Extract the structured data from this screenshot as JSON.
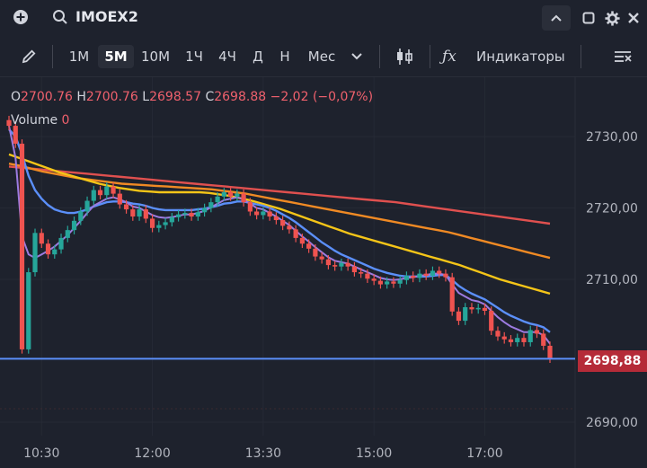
{
  "symbol": "IMOEX2",
  "timeframes": [
    "1М",
    "5М",
    "10М",
    "1Ч",
    "4Ч",
    "Д",
    "Н",
    "Мес"
  ],
  "active_timeframe": "5М",
  "indicators_label": "Индикаторы",
  "ohlc": {
    "o_label": "O",
    "o_value": "2700.76",
    "h_label": "H",
    "h_value": "2700.76",
    "l_label": "L",
    "l_value": "2698.57",
    "c_label": "C",
    "c_value": "2698.88",
    "change": "−2,02 (−0,07%)"
  },
  "volume": {
    "label": "Volume",
    "value": "0"
  },
  "last_price_label": "2698,88",
  "colors": {
    "background": "#1e222d",
    "up": "#26a69a",
    "down": "#ef5350",
    "ma_fast": "#9c7be0",
    "ma_blue": "#5b8ff9",
    "ma_yellow": "#f5c518",
    "ma_orange": "#f08a24",
    "ma_red": "#e0504f",
    "price_line": "#5b8ff9"
  },
  "chart_data": {
    "type": "candlestick",
    "x_ticks": [
      "10:30",
      "12:00",
      "13:30",
      "15:00",
      "17:00"
    ],
    "y_ticks": [
      "2730,00",
      "2720,00",
      "2710,00",
      "2690,00"
    ],
    "ylim": [
      2687,
      2735
    ],
    "last_price": 2698.88,
    "closes": [
      2731.5,
      2729.0,
      2700.2,
      2711.0,
      2716.5,
      2715.0,
      2713.5,
      2714.2,
      2715.8,
      2716.9,
      2718.2,
      2719.5,
      2721.0,
      2722.5,
      2721.8,
      2723.0,
      2722.0,
      2720.5,
      2719.8,
      2718.8,
      2719.8,
      2718.5,
      2717.2,
      2717.6,
      2718.0,
      2718.7,
      2719.1,
      2719.3,
      2718.8,
      2719.4,
      2720.0,
      2720.8,
      2721.6,
      2722.2,
      2721.6,
      2722.0,
      2720.8,
      2719.5,
      2719.0,
      2719.5,
      2718.8,
      2718.3,
      2717.5,
      2717.0,
      2715.8,
      2715.0,
      2714.3,
      2713.2,
      2712.8,
      2712.0,
      2711.8,
      2712.3,
      2711.8,
      2711.0,
      2710.8,
      2710.1,
      2709.8,
      2709.3,
      2709.7,
      2709.4,
      2709.9,
      2710.5,
      2710.2,
      2710.8,
      2710.5,
      2711.2,
      2710.8,
      2710.3,
      2705.5,
      2704.2,
      2706.1,
      2705.8,
      2706.0,
      2705.6,
      2702.8,
      2702.0,
      2701.6,
      2701.2,
      2701.8,
      2701.2,
      2702.9,
      2702.4,
      2700.7,
      2698.9
    ],
    "ma_fast": [
      2731.5,
      2727.0,
      2716.0,
      2713.5,
      2713.0,
      2713.5,
      2714.0,
      2714.6,
      2715.4,
      2716.2,
      2717.2,
      2718.2,
      2719.3,
      2720.3,
      2720.8,
      2721.3,
      2721.5,
      2721.2,
      2720.8,
      2720.2,
      2720.0,
      2719.5,
      2719.0,
      2718.7,
      2718.6,
      2718.7,
      2718.9,
      2719.1,
      2719.1,
      2719.3,
      2719.6,
      2720.1,
      2720.6,
      2721.1,
      2721.3,
      2721.5,
      2721.2,
      2720.6,
      2720.0,
      2719.8,
      2719.3,
      2718.8,
      2718.2,
      2717.6,
      2716.8,
      2716.0,
      2715.3,
      2714.5,
      2713.8,
      2713.1,
      2712.6,
      2712.4,
      2712.2,
      2711.8,
      2711.4,
      2711.0,
      2710.6,
      2710.2,
      2710.0,
      2709.9,
      2710.0,
      2710.2,
      2710.3,
      2710.5,
      2710.6,
      2710.8,
      2710.8,
      2710.6,
      2709.3,
      2708.1,
      2707.6,
      2707.1,
      2706.9,
      2706.5,
      2705.6,
      2704.7,
      2704.0,
      2703.4,
      2703.0,
      2702.6,
      2702.6,
      2702.6,
      2702.2,
      2701.0
    ],
    "ma_blue": [
      2731.0,
      2730.0,
      2727.5,
      2724.5,
      2722.5,
      2721.3,
      2720.4,
      2719.8,
      2719.5,
      2719.3,
      2719.3,
      2719.5,
      2719.8,
      2720.2,
      2720.5,
      2720.8,
      2720.9,
      2720.9,
      2720.8,
      2720.6,
      2720.5,
      2720.3,
      2720.0,
      2719.8,
      2719.7,
      2719.7,
      2719.7,
      2719.7,
      2719.7,
      2719.8,
      2719.9,
      2720.1,
      2720.3,
      2720.6,
      2720.7,
      2720.9,
      2720.9,
      2720.7,
      2720.5,
      2720.3,
      2720.0,
      2719.6,
      2719.1,
      2718.6,
      2718.0,
      2717.3,
      2716.6,
      2715.9,
      2715.2,
      2714.6,
      2714.0,
      2713.5,
      2713.1,
      2712.7,
      2712.3,
      2711.9,
      2711.5,
      2711.2,
      2710.9,
      2710.7,
      2710.5,
      2710.4,
      2710.4,
      2710.4,
      2710.4,
      2710.5,
      2710.6,
      2710.6,
      2709.9,
      2709.1,
      2708.5,
      2708.0,
      2707.6,
      2707.2,
      2706.6,
      2706.0,
      2705.4,
      2704.9,
      2704.5,
      2704.1,
      2703.8,
      2703.6,
      2703.3,
      2702.6
    ],
    "ma_yellow": [
      2727.5,
      2727.0,
      2726.5,
      2726.0,
      2725.5,
      2725.0,
      2724.6,
      2724.2,
      2723.8,
      2723.4,
      2723.1,
      2722.8,
      2722.6,
      2722.4,
      2722.3,
      2722.2,
      2722.2,
      2722.2,
      2722.2,
      2722.2,
      2722.1,
      2721.9,
      2721.7,
      2721.4,
      2721.1,
      2720.7,
      2720.3,
      2719.9,
      2719.4,
      2718.9,
      2718.4,
      2717.9,
      2717.4,
      2716.9,
      2716.4,
      2716.0,
      2715.6,
      2715.2,
      2714.8,
      2714.4,
      2714.0,
      2713.6,
      2713.2,
      2712.8,
      2712.4,
      2712.0,
      2711.5,
      2711.0,
      2710.5,
      2710.0,
      2709.6,
      2709.2,
      2708.8,
      2708.4,
      2708.0
    ],
    "ma_orange": [
      2726.2,
      2725.9,
      2725.5,
      2725.1,
      2724.8,
      2724.5,
      2724.2,
      2724.0,
      2723.8,
      2723.6,
      2723.4,
      2723.3,
      2723.2,
      2723.1,
      2723.0,
      2722.9,
      2722.8,
      2722.7,
      2722.6,
      2722.4,
      2722.2,
      2722.0,
      2721.7,
      2721.4,
      2721.1,
      2720.8,
      2720.5,
      2720.2,
      2719.9,
      2719.6,
      2719.3,
      2719.0,
      2718.7,
      2718.4,
      2718.1,
      2717.8,
      2717.5,
      2717.2,
      2716.9,
      2716.6,
      2716.2,
      2715.8,
      2715.4,
      2715.0,
      2714.6,
      2714.2,
      2713.8,
      2713.4,
      2713.0
    ],
    "ma_red": [
      2725.8,
      2725.6,
      2725.4,
      2725.2,
      2725.0,
      2724.8,
      2724.6,
      2724.4,
      2724.2,
      2724.0,
      2723.8,
      2723.6,
      2723.4,
      2723.2,
      2723.0,
      2722.8,
      2722.6,
      2722.4,
      2722.2,
      2722.0,
      2721.8,
      2721.6,
      2721.4,
      2721.2,
      2721.0,
      2720.8,
      2720.5,
      2720.2,
      2719.9,
      2719.6,
      2719.3,
      2719.0,
      2718.7,
      2718.4,
      2718.1,
      2717.8
    ]
  }
}
